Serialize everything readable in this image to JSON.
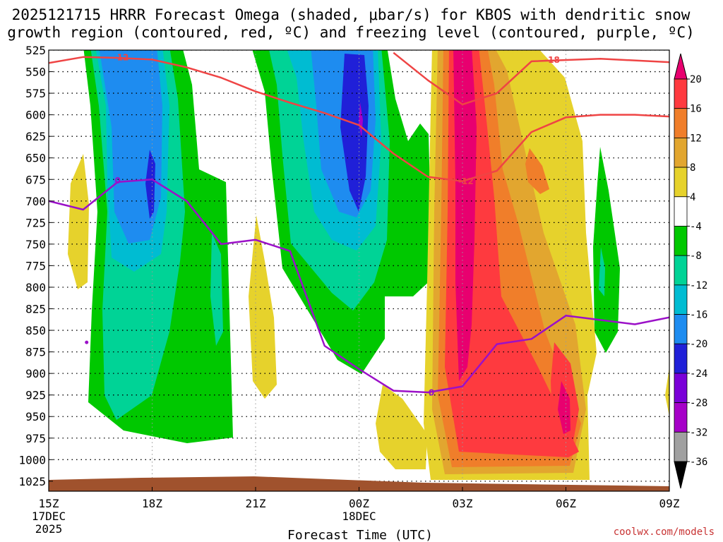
{
  "chart_data": {
    "type": "time-height contour",
    "title_line1": "2025121715 HRRR Forecast Omega (shaded, μbar/s) for KBOS with dendritic snow",
    "title_line2": "growth region (contoured, red, ºC) and freezing level (contoured, purple, ºC)",
    "xlabel": "Forecast Time (UTC)",
    "credit": "coolwx.com/models",
    "x_ticks": [
      {
        "hour": 0,
        "label": "15Z",
        "sub1": "17DEC",
        "sub2": "2025"
      },
      {
        "hour": 3,
        "label": "18Z"
      },
      {
        "hour": 6,
        "label": "21Z"
      },
      {
        "hour": 9,
        "label": "00Z",
        "sub1": "18DEC"
      },
      {
        "hour": 12,
        "label": "03Z"
      },
      {
        "hour": 15,
        "label": "06Z"
      },
      {
        "hour": 18,
        "label": "09Z"
      }
    ],
    "pressure_levels": [
      "525",
      "550",
      "575",
      "600",
      "625",
      "650",
      "675",
      "700",
      "725",
      "750",
      "775",
      "800",
      "825",
      "850",
      "875",
      "900",
      "925",
      "950",
      "975",
      "1000",
      "1025"
    ],
    "colorbar": {
      "labels": [
        "20",
        "16",
        "12",
        "8",
        "4",
        "-4",
        "-8",
        "-12",
        "-16",
        "-20",
        "-24",
        "-28",
        "-32",
        "-36"
      ],
      "colors": [
        "#e8006f",
        "#fe3a3f",
        "#f07e2a",
        "#e2a62f",
        "#e6d22c",
        "#ffffff",
        "#00c800",
        "#00d396",
        "#00bcd2",
        "#1e8cf0",
        "#2020d8",
        "#7a00d8",
        "#a600c8",
        "#a0a0a0",
        "#000000"
      ]
    },
    "contour_labels": {
      "red": [
        "-12",
        "-18",
        "-12"
      ],
      "purple": [
        "0",
        "0"
      ]
    },
    "series": [
      {
        "name": "red -12C isotherm (upper left)",
        "points": [
          [
            0,
            540
          ],
          [
            1,
            533
          ],
          [
            2,
            534
          ],
          [
            3,
            536
          ],
          [
            4,
            545
          ],
          [
            5,
            557
          ],
          [
            6,
            573
          ],
          [
            7,
            586
          ],
          [
            8,
            598
          ],
          [
            9,
            612
          ],
          [
            10,
            645
          ],
          [
            11,
            672
          ],
          [
            12,
            677
          ],
          [
            13,
            665
          ],
          [
            14,
            620
          ],
          [
            15,
            603
          ],
          [
            16,
            600
          ],
          [
            17,
            600
          ],
          [
            18,
            602
          ]
        ]
      },
      {
        "name": "red -18C isotherm (upper right)",
        "points": [
          [
            10,
            528
          ],
          [
            11,
            560
          ],
          [
            12,
            588
          ],
          [
            13,
            575
          ],
          [
            14,
            538
          ],
          [
            16,
            535
          ],
          [
            18,
            539
          ]
        ]
      },
      {
        "name": "purple 0C freezing level",
        "points": [
          [
            0,
            700
          ],
          [
            1,
            710
          ],
          [
            2,
            678
          ],
          [
            3,
            675
          ],
          [
            4,
            700
          ],
          [
            5,
            750
          ],
          [
            6,
            745
          ],
          [
            7,
            758
          ],
          [
            8,
            868
          ],
          [
            9,
            895
          ],
          [
            10,
            920
          ],
          [
            11,
            922
          ],
          [
            12,
            915
          ],
          [
            13,
            866
          ],
          [
            14,
            860
          ],
          [
            15,
            833
          ],
          [
            16,
            838
          ],
          [
            17,
            843
          ],
          [
            18,
            835
          ]
        ]
      }
    ]
  }
}
